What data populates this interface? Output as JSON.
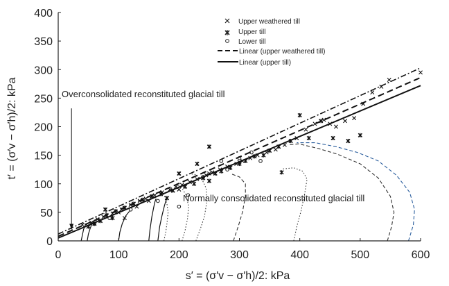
{
  "chart_data": {
    "type": "scatter",
    "title": "",
    "xlabel": "s′ = (σ′v − σ′h)/2: kPa",
    "ylabel": "t′ = (σ′v − σ′h)/2: kPa",
    "xlim": [
      0,
      600
    ],
    "ylim": [
      0,
      400
    ],
    "xticks": [
      0,
      100,
      200,
      300,
      400,
      500,
      600
    ],
    "yticks": [
      0,
      50,
      100,
      150,
      200,
      250,
      300,
      350,
      400
    ],
    "grid": false,
    "legend_position": "top-right",
    "legend": [
      {
        "label": "Upper weathered till",
        "marker": "x"
      },
      {
        "label": "Upper till",
        "marker": "asterisk"
      },
      {
        "label": "Lower till",
        "marker": "circle"
      },
      {
        "label": "Linear (upper weathered till)",
        "line": "dashed"
      },
      {
        "label": "Linear (upper till)",
        "line": "solid"
      }
    ],
    "annotations": [
      {
        "text": "Overconsolidated reconstituted glacial till",
        "x": 22,
        "y": 245
      },
      {
        "text": "Normally consolidated reconstituted glacial till",
        "x": 265,
        "y": 100
      }
    ],
    "series": [
      {
        "name": "Upper weathered till",
        "marker": "x",
        "points": [
          [
            40,
            28
          ],
          [
            55,
            32
          ],
          [
            65,
            38
          ],
          [
            75,
            42
          ],
          [
            90,
            48
          ],
          [
            105,
            55
          ],
          [
            120,
            63
          ],
          [
            135,
            70
          ],
          [
            145,
            74
          ],
          [
            160,
            80
          ],
          [
            172,
            85
          ],
          [
            185,
            90
          ],
          [
            195,
            95
          ],
          [
            205,
            98
          ],
          [
            218,
            103
          ],
          [
            230,
            108
          ],
          [
            245,
            115
          ],
          [
            255,
            120
          ],
          [
            268,
            125
          ],
          [
            280,
            130
          ],
          [
            295,
            135
          ],
          [
            305,
            140
          ],
          [
            318,
            145
          ],
          [
            330,
            150
          ],
          [
            345,
            155
          ],
          [
            360,
            160
          ],
          [
            375,
            168
          ],
          [
            395,
            180
          ],
          [
            410,
            195
          ],
          [
            425,
            205
          ],
          [
            440,
            212
          ],
          [
            450,
            205
          ],
          [
            460,
            200
          ],
          [
            475,
            210
          ],
          [
            490,
            215
          ],
          [
            505,
            240
          ],
          [
            520,
            260
          ],
          [
            535,
            270
          ],
          [
            548,
            282
          ],
          [
            600,
            295
          ],
          [
            100,
            50
          ],
          [
            110,
            40
          ],
          [
            130,
            60
          ],
          [
            150,
            70
          ],
          [
            200,
            90
          ],
          [
            250,
            118
          ],
          [
            300,
            138
          ]
        ]
      },
      {
        "name": "Upper till",
        "marker": "asterisk",
        "points": [
          [
            50,
            25
          ],
          [
            60,
            30
          ],
          [
            70,
            35
          ],
          [
            80,
            45
          ],
          [
            95,
            52
          ],
          [
            110,
            58
          ],
          [
            125,
            65
          ],
          [
            140,
            72
          ],
          [
            155,
            78
          ],
          [
            170,
            82
          ],
          [
            180,
            75
          ],
          [
            190,
            88
          ],
          [
            210,
            95
          ],
          [
            225,
            100
          ],
          [
            240,
            110
          ],
          [
            250,
            105
          ],
          [
            260,
            118
          ],
          [
            270,
            122
          ],
          [
            285,
            128
          ],
          [
            300,
            135
          ],
          [
            310,
            140
          ],
          [
            325,
            148
          ],
          [
            340,
            150
          ],
          [
            350,
            158
          ],
          [
            365,
            165
          ],
          [
            370,
            120
          ],
          [
            385,
            175
          ],
          [
            400,
            220
          ],
          [
            415,
            180
          ],
          [
            435,
            210
          ],
          [
            455,
            180
          ],
          [
            480,
            175
          ],
          [
            500,
            185
          ],
          [
            250,
            165
          ],
          [
            78,
            55
          ],
          [
            90,
            40
          ],
          [
            200,
            118
          ],
          [
            230,
            135
          ]
        ]
      },
      {
        "name": "Lower till",
        "marker": "circle",
        "points": [
          [
            60,
            30
          ],
          [
            85,
            40
          ],
          [
            120,
            55
          ],
          [
            165,
            70
          ],
          [
            200,
            60
          ],
          [
            215,
            80
          ],
          [
            240,
            112
          ],
          [
            280,
            125
          ],
          [
            300,
            145
          ],
          [
            320,
            155
          ],
          [
            335,
            140
          ],
          [
            270,
            140
          ]
        ]
      }
    ],
    "trend_lines": [
      {
        "name": "Linear (upper weathered till)",
        "style": "dashed",
        "x": [
          0,
          600
        ],
        "y": [
          8,
          286
        ]
      },
      {
        "name": "Linear (upper till)",
        "style": "solid",
        "x": [
          0,
          600
        ],
        "y": [
          5,
          272
        ]
      },
      {
        "name": "",
        "style": "dashdot",
        "x": [
          0,
          600
        ],
        "y": [
          12,
          303
        ]
      }
    ],
    "stress_paths_overconsolidated": [
      {
        "x": [
          38,
          40,
          42,
          45,
          48
        ],
        "y": [
          0,
          10,
          20,
          28,
          30
        ]
      },
      {
        "x": [
          48,
          50,
          53,
          56,
          60
        ],
        "y": [
          0,
          12,
          22,
          30,
          36
        ]
      },
      {
        "x": [
          100,
          102,
          106,
          112,
          118
        ],
        "y": [
          0,
          15,
          30,
          44,
          52
        ]
      },
      {
        "x": [
          150,
          152,
          155,
          158,
          160,
          162
        ],
        "y": [
          0,
          20,
          42,
          58,
          68,
          74
        ]
      },
      {
        "x": [
          165,
          168,
          172,
          176,
          180
        ],
        "y": [
          0,
          25,
          45,
          62,
          76
        ]
      }
    ],
    "stress_paths_normally_consolidated": [
      {
        "x": [
          175,
          178,
          180,
          182,
          180,
          176,
          170
        ],
        "y": [
          0,
          15,
          30,
          50,
          65,
          78,
          86
        ],
        "style": "dotted"
      },
      {
        "x": [
          205,
          210,
          214,
          216,
          212,
          205,
          195
        ],
        "y": [
          0,
          18,
          38,
          60,
          80,
          92,
          100
        ],
        "style": "dotted"
      },
      {
        "x": [
          228,
          235,
          242,
          246,
          245,
          238,
          228,
          215
        ],
        "y": [
          0,
          20,
          42,
          68,
          92,
          108,
          116,
          118
        ],
        "style": "dotted"
      },
      {
        "x": [
          290,
          298,
          305,
          310,
          310,
          300,
          285
        ],
        "y": [
          0,
          25,
          50,
          78,
          100,
          112,
          118
        ],
        "style": "dashed"
      },
      {
        "x": [
          390,
          395,
          402,
          408,
          412,
          405,
          390,
          372
        ],
        "y": [
          0,
          25,
          52,
          82,
          108,
          122,
          128,
          126
        ],
        "style": "dotted"
      },
      {
        "x": [
          545,
          552,
          556,
          550,
          530,
          500,
          462,
          430,
          398,
          380
        ],
        "y": [
          0,
          25,
          50,
          78,
          110,
          135,
          152,
          162,
          170,
          168
        ],
        "style": "dashed"
      },
      {
        "x": [
          580,
          588,
          590,
          582,
          560,
          530,
          495,
          460,
          425,
          395
        ],
        "y": [
          0,
          28,
          55,
          85,
          115,
          140,
          155,
          165,
          172,
          172
        ],
        "style": "dashed-blue"
      }
    ]
  }
}
